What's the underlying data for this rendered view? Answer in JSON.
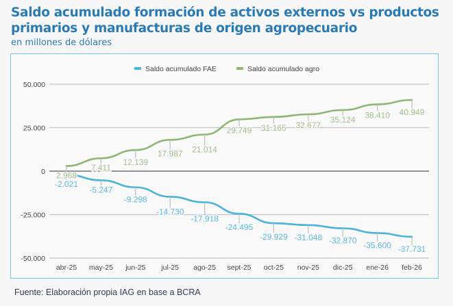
{
  "header": {
    "title": "Saldo acumulado formación de activos externos vs productos primarios y manufacturas de origen agropecuario",
    "subtitle": "en millones de dólares"
  },
  "footer": {
    "source": "Fuente: Elaboración propia IAG en base a BCRA"
  },
  "chart_data": {
    "type": "line",
    "title": "Saldo acumulado formación de activos externos vs productos primarios y manufacturas de origen agropecuario",
    "subtitle": "en millones de dólares",
    "xlabel": "",
    "ylabel": "",
    "categories": [
      "abr-25",
      "may-25",
      "jun-25",
      "jul-25",
      "ago-25",
      "sept-25",
      "oct-25",
      "nov-25",
      "dic-25",
      "ene-26",
      "feb-26"
    ],
    "ylim": [
      -50000,
      50000
    ],
    "yticks": [
      50000,
      25000,
      0,
      -25000,
      -50000
    ],
    "ytick_labels": [
      "50.000",
      "25.000",
      "0",
      "-25.000",
      "-50.000"
    ],
    "grid": true,
    "legend_position": "top-center",
    "series": [
      {
        "name": "Saldo acumulado FAE",
        "color": "#4ab3d9",
        "values": [
          -2021,
          -5247,
          -9298,
          -14730,
          -17918,
          -24495,
          -29929,
          -31048,
          -32870,
          -35600,
          -37731
        ],
        "labels": [
          "-2.021",
          "-5.247",
          "-9.298",
          "-14.730",
          "-17.918",
          "-24.495",
          "-29.929",
          "-31.048",
          "-32.870",
          "-35.600",
          "-37.731"
        ]
      },
      {
        "name": "Saldo acumulado agro",
        "color": "#8fb675",
        "values": [
          2968,
          7411,
          12139,
          17987,
          21014,
          29749,
          31165,
          32677,
          35124,
          38410,
          40949
        ],
        "labels": [
          "2.968",
          "7.411",
          "12.139",
          "17.987",
          "21.014",
          "29.749",
          "31.165",
          "32.677",
          "35.124",
          "38.410",
          "40.949"
        ]
      }
    ]
  }
}
